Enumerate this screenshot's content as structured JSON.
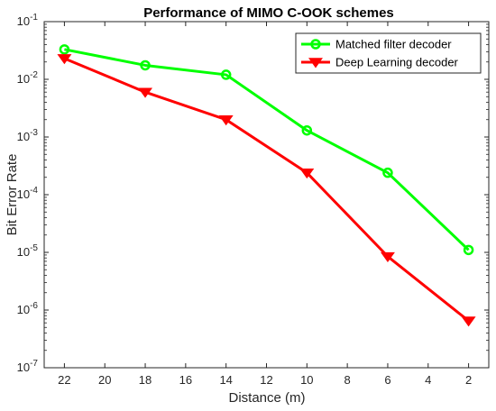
{
  "chart_data": {
    "type": "line",
    "title": "Performance of MIMO C-OOK schemes",
    "xlabel": "Distance (m)",
    "ylabel": "Bit Error Rate",
    "x": [
      22,
      18,
      14,
      10,
      6,
      2
    ],
    "x_ticks": [
      "22",
      "20",
      "18",
      "16",
      "14",
      "12",
      "10",
      "8",
      "6",
      "4",
      "2"
    ],
    "xlim": [
      1,
      23
    ],
    "x_reversed": true,
    "ylim": [
      1e-07,
      0.1
    ],
    "y_scale": "log",
    "y_ticks": [
      {
        "base": "10",
        "exp": "-1"
      },
      {
        "base": "10",
        "exp": "-2"
      },
      {
        "base": "10",
        "exp": "-3"
      },
      {
        "base": "10",
        "exp": "-4"
      },
      {
        "base": "10",
        "exp": "-5"
      },
      {
        "base": "10",
        "exp": "-6"
      },
      {
        "base": "10",
        "exp": "-7"
      }
    ],
    "grid": false,
    "legend_position": "top-right",
    "series": [
      {
        "name": "Matched filter decoder",
        "color": "#00ff00",
        "marker": "circle",
        "values": [
          0.033,
          0.0175,
          0.012,
          0.0013,
          0.00024,
          1.1e-05
        ]
      },
      {
        "name": "Deep Learning decoder",
        "color": "#ff0000",
        "marker": "triangle-down",
        "values": [
          0.023,
          0.006,
          0.002,
          0.00024,
          8.5e-06,
          6.5e-07
        ]
      }
    ]
  }
}
